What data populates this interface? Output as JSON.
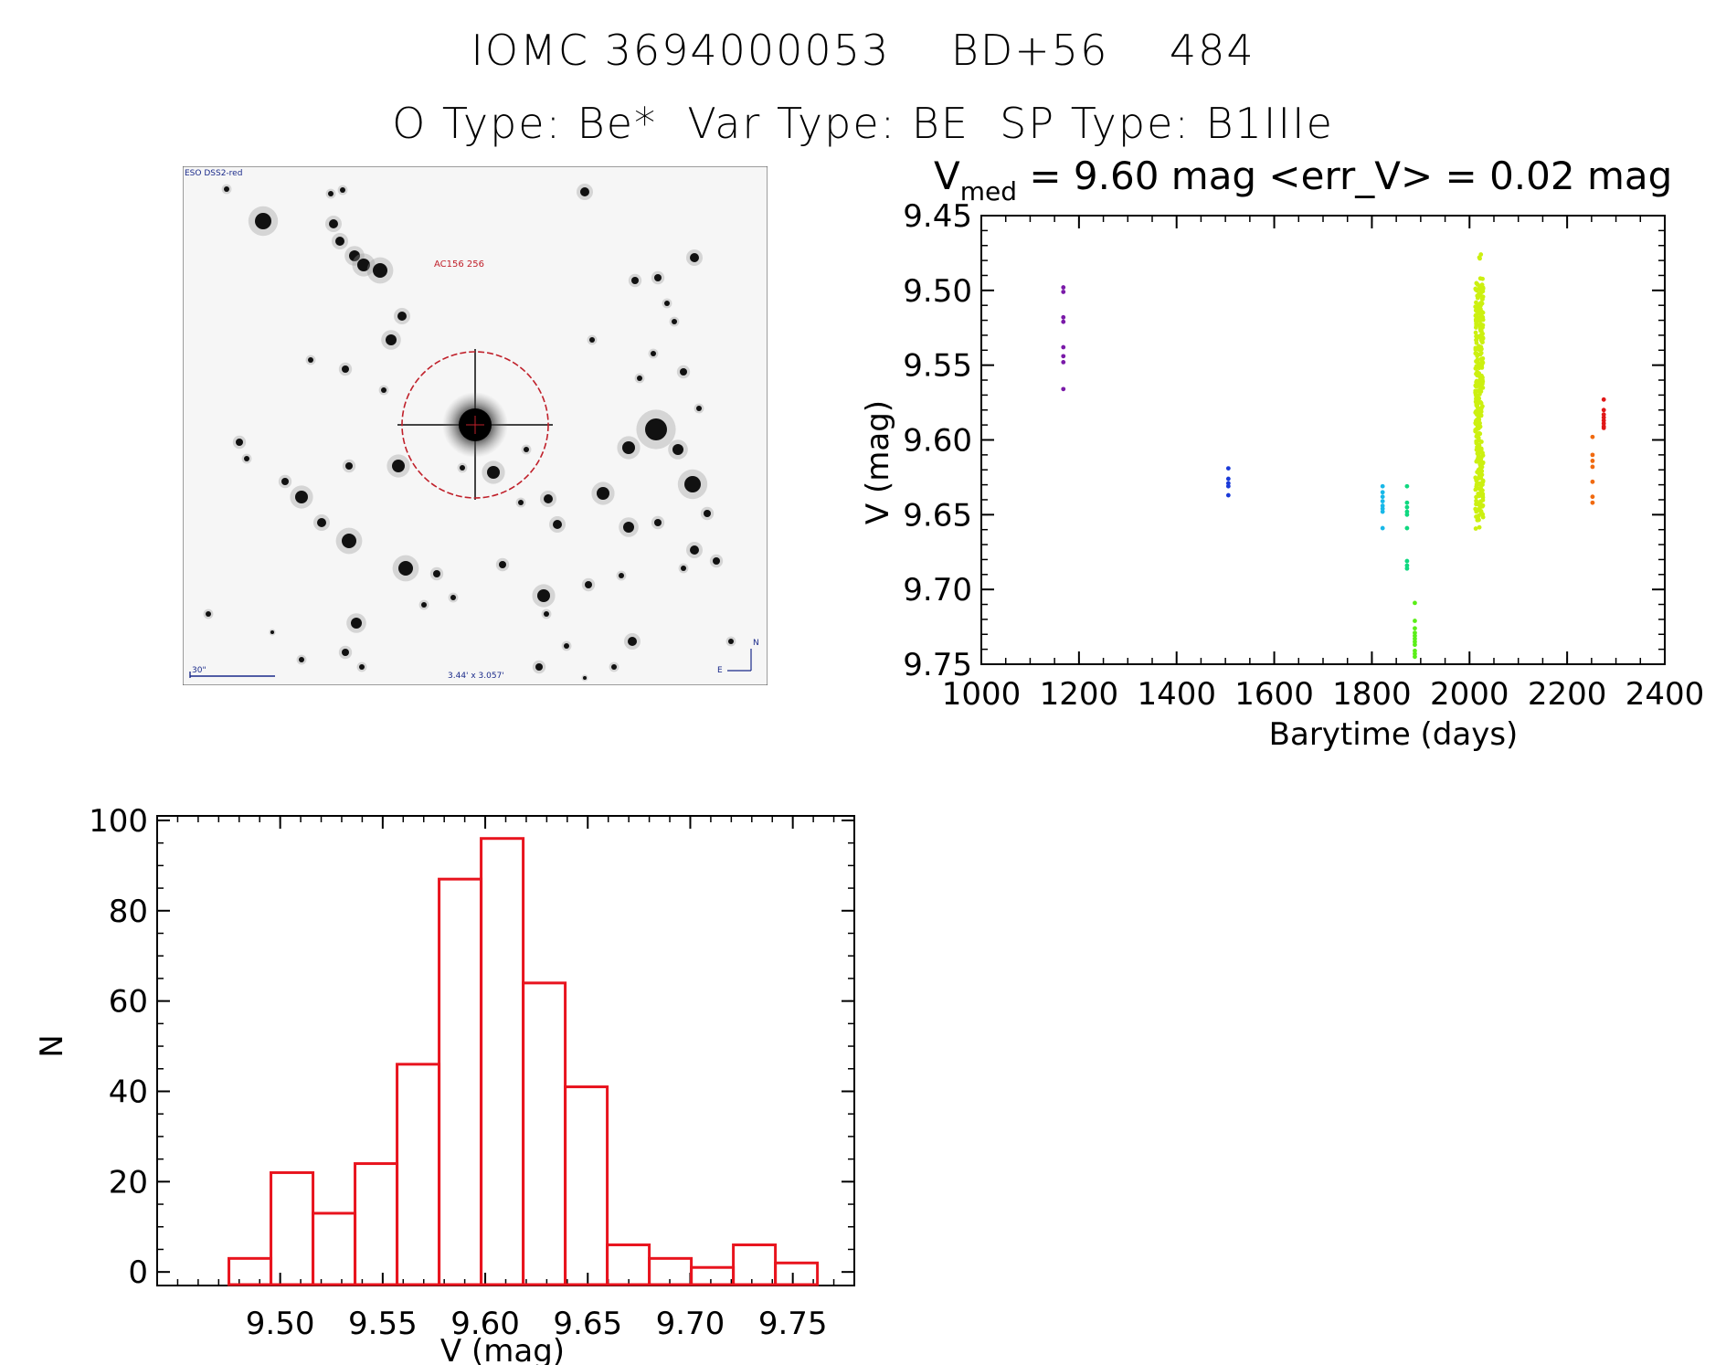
{
  "title": {
    "line1": "IOMC 3694000053    BD+56    484",
    "line2": "O Type: Be*  Var Type: BE  SP Type: B1IIIe"
  },
  "finder_chart": {
    "survey_label": "ESO DSS2-red",
    "source_label": "AC156 256",
    "scale_label": "30\"",
    "fov_label": "3.44' x 3.057'",
    "north_label": "N",
    "east_label": "E",
    "circle_color": "#c0202a",
    "text_color": "#1a2a8a"
  },
  "chart_data": [
    {
      "type": "scatter",
      "title_prefix": "V",
      "title_subscript": "med",
      "title_rest": " = 9.60 mag <err_V> = 0.02 mag",
      "xlabel": "Barytime (days)",
      "ylabel": "V (mag)",
      "xlim": [
        1000,
        2400
      ],
      "ylim": [
        9.75,
        9.45
      ],
      "y_inverted": true,
      "xticks": [
        1000,
        1200,
        1400,
        1600,
        1800,
        2000,
        2200,
        2400
      ],
      "yticks": [
        "9.45",
        "9.50",
        "9.55",
        "9.60",
        "9.65",
        "9.70",
        "9.75"
      ],
      "series": [
        {
          "color": "#7a1aa8",
          "x": [
            1168,
            1168,
            1168,
            1168,
            1168,
            1168,
            1168,
            1168
          ],
          "y": [
            9.498,
            9.501,
            9.518,
            9.521,
            9.538,
            9.544,
            9.566,
            9.548
          ]
        },
        {
          "color": "#1a3ad8",
          "x": [
            1506,
            1506,
            1506,
            1506,
            1506
          ],
          "y": [
            9.619,
            9.626,
            9.629,
            9.631,
            9.637
          ]
        },
        {
          "color": "#18b8e8",
          "x": [
            1822,
            1822,
            1822,
            1822,
            1822,
            1822,
            1822,
            1822
          ],
          "y": [
            9.631,
            9.635,
            9.638,
            9.641,
            9.644,
            9.646,
            9.648,
            9.659
          ]
        },
        {
          "color": "#10d880",
          "x": [
            1872,
            1872,
            1872,
            1872,
            1872,
            1872,
            1872,
            1872,
            1872
          ],
          "y": [
            9.631,
            9.642,
            9.645,
            9.648,
            9.65,
            9.659,
            9.681,
            9.684,
            9.686
          ]
        },
        {
          "color": "#5aee18",
          "x": [
            1888,
            1888,
            1888,
            1888,
            1888,
            1888,
            1888,
            1888,
            1888,
            1888,
            1888
          ],
          "y": [
            9.709,
            9.721,
            9.726,
            9.729,
            9.731,
            9.733,
            9.735,
            9.737,
            9.741,
            9.743,
            9.745
          ]
        },
        {
          "color": "#ccf010",
          "x_center": 2020,
          "x_spread": 16,
          "y_min": 9.475,
          "y_max": 9.665,
          "y_dense_min": 9.495,
          "y_dense_max": 9.655,
          "count": 320
        },
        {
          "color": "#f06a10",
          "x": [
            2252,
            2252,
            2252,
            2252,
            2252,
            2252,
            2252
          ],
          "y": [
            9.598,
            9.61,
            9.614,
            9.618,
            9.628,
            9.638,
            9.642
          ]
        },
        {
          "color": "#e01818",
          "x": [
            2275,
            2275,
            2275,
            2275,
            2275,
            2275,
            2275,
            2275
          ],
          "y": [
            9.573,
            9.58,
            9.583,
            9.585,
            9.587,
            9.589,
            9.591,
            9.592
          ]
        }
      ]
    },
    {
      "type": "bar",
      "subtype": "histogram",
      "xlabel": "V (mag)",
      "ylabel": "N",
      "xlim": [
        9.44,
        9.78
      ],
      "ylim": [
        -3,
        101
      ],
      "xticks": [
        "9.50",
        "9.55",
        "9.60",
        "9.65",
        "9.70",
        "9.75"
      ],
      "yticks": [
        "0",
        "20",
        "40",
        "60",
        "80",
        "100"
      ],
      "bar_color": "#e8141e",
      "bin_start": 9.475,
      "bin_width": 0.0205,
      "values": [
        3,
        22,
        13,
        24,
        46,
        87,
        96,
        64,
        41,
        6,
        3,
        1,
        6,
        2
      ]
    }
  ]
}
